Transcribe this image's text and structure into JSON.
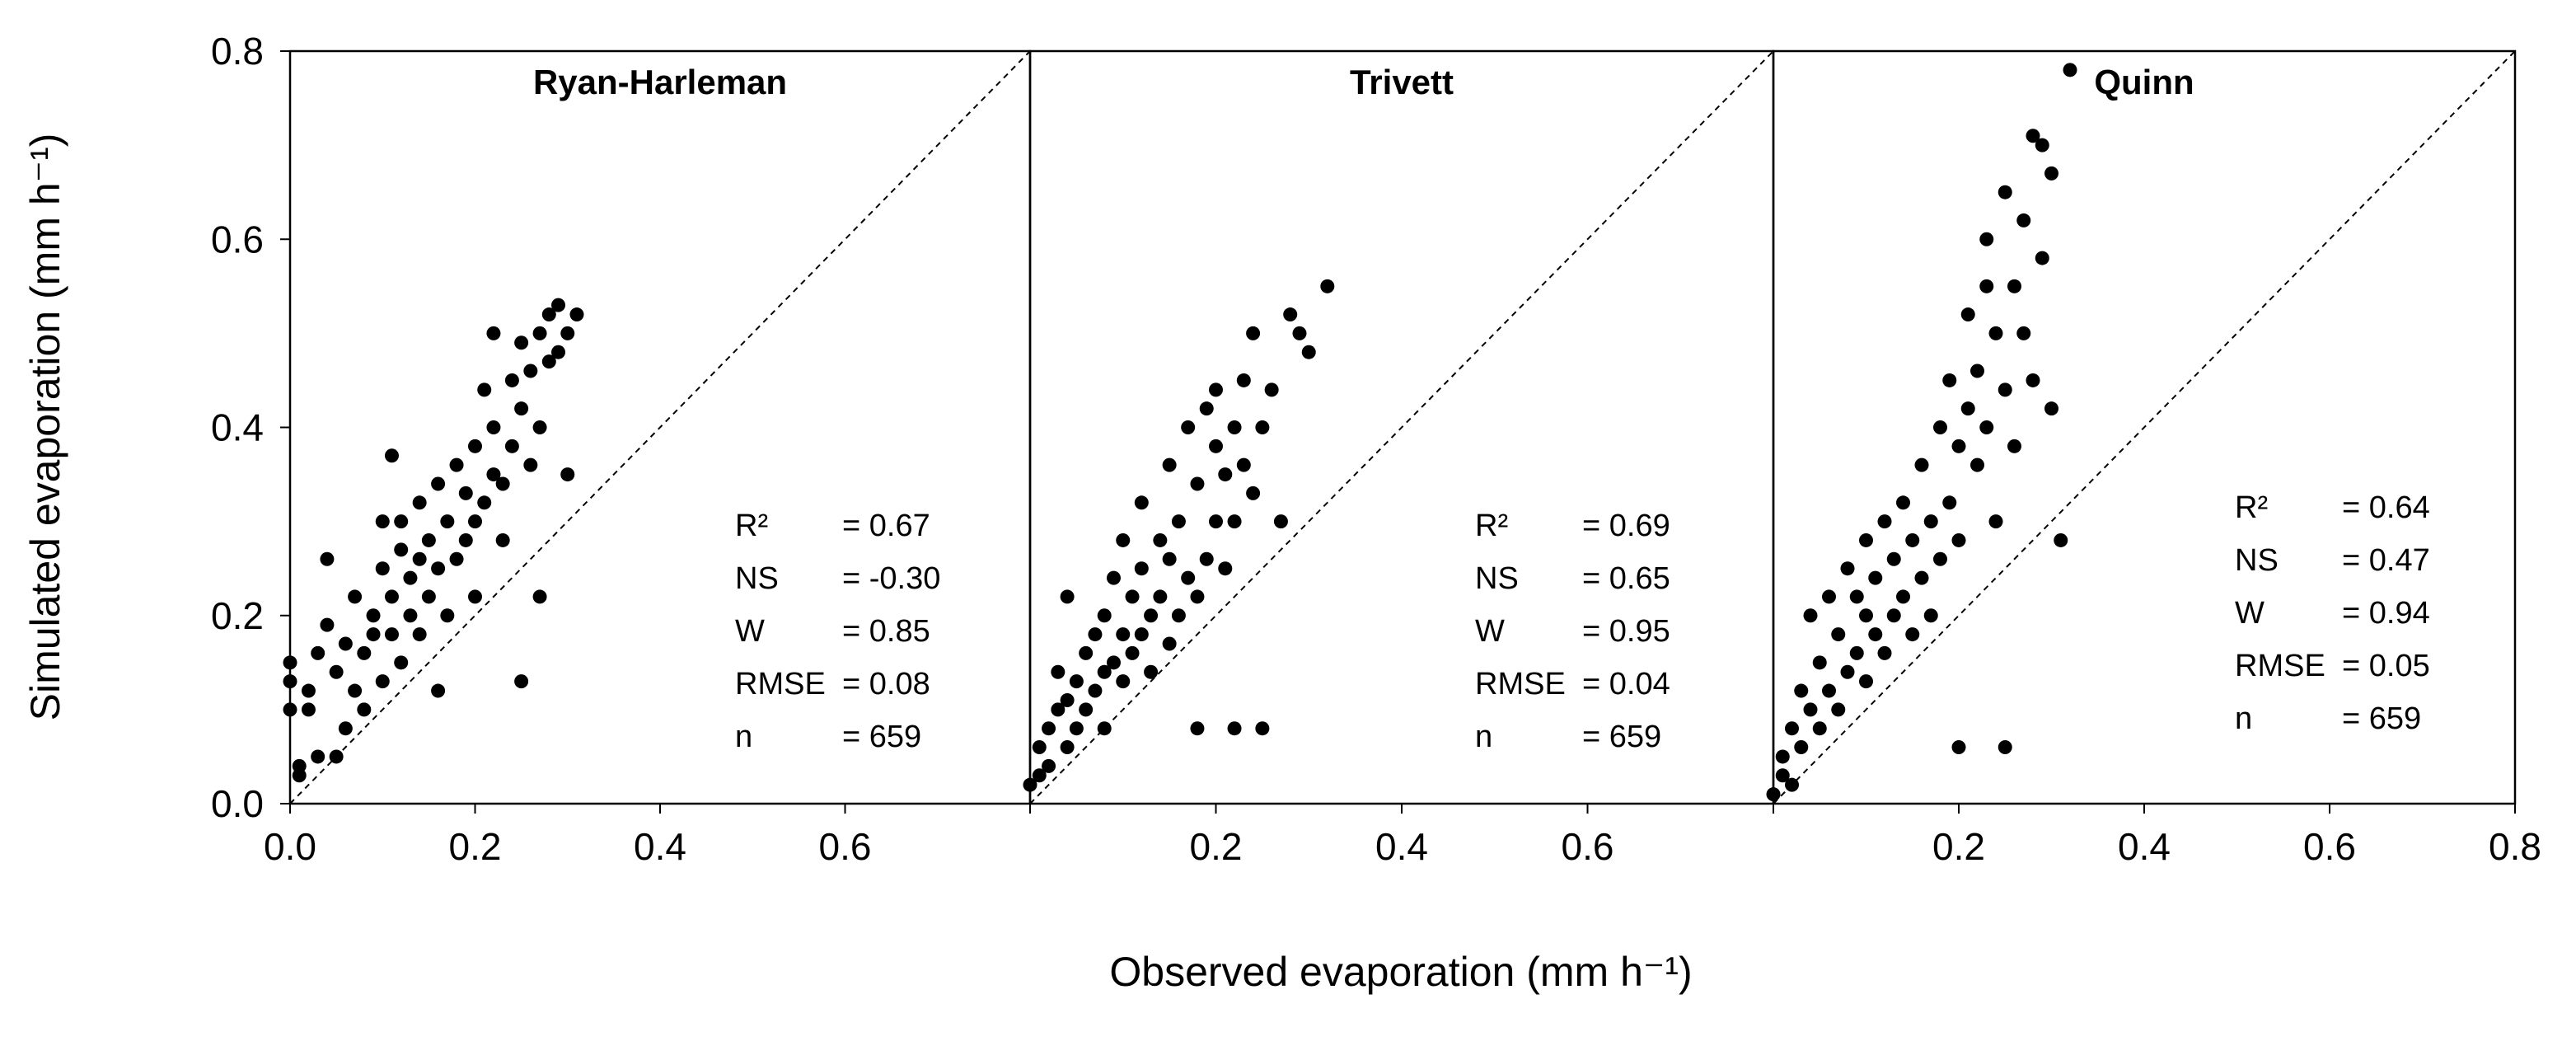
{
  "chart_data": {
    "type": "scatter",
    "xlabel": "Observed evaporation (mm h⁻¹)",
    "ylabel": "Simulated evaporation (mm h⁻¹)",
    "y_ticks": [
      "0.0",
      "0.2",
      "0.4",
      "0.6",
      "0.8"
    ],
    "ylim": [
      0,
      0.8
    ],
    "reference_line": "1:1 dashed",
    "panels": [
      {
        "title": "Ryan-Harleman",
        "xlim": [
          0,
          0.8
        ],
        "x_ticks": [
          "0.0",
          "0.2",
          "0.4",
          "0.6"
        ],
        "stats": [
          {
            "label": "R²",
            "value": "= 0.67"
          },
          {
            "label": "NS",
            "value": "= -0.30"
          },
          {
            "label": "W",
            "value": "= 0.85"
          },
          {
            "label": "RMSE",
            "value": "= 0.08"
          },
          {
            "label": "n",
            "value": "= 659"
          }
        ],
        "points": [
          [
            0.0,
            0.1
          ],
          [
            0.0,
            0.13
          ],
          [
            0.01,
            0.04
          ],
          [
            0.01,
            0.03
          ],
          [
            0.0,
            0.15
          ],
          [
            0.02,
            0.12
          ],
          [
            0.03,
            0.16
          ],
          [
            0.02,
            0.1
          ],
          [
            0.04,
            0.19
          ],
          [
            0.04,
            0.26
          ],
          [
            0.03,
            0.05
          ],
          [
            0.05,
            0.05
          ],
          [
            0.05,
            0.14
          ],
          [
            0.06,
            0.17
          ],
          [
            0.06,
            0.08
          ],
          [
            0.07,
            0.12
          ],
          [
            0.07,
            0.22
          ],
          [
            0.08,
            0.16
          ],
          [
            0.08,
            0.1
          ],
          [
            0.09,
            0.18
          ],
          [
            0.09,
            0.2
          ],
          [
            0.1,
            0.13
          ],
          [
            0.1,
            0.25
          ],
          [
            0.1,
            0.3
          ],
          [
            0.11,
            0.22
          ],
          [
            0.11,
            0.18
          ],
          [
            0.11,
            0.37
          ],
          [
            0.12,
            0.15
          ],
          [
            0.12,
            0.27
          ],
          [
            0.12,
            0.3
          ],
          [
            0.13,
            0.2
          ],
          [
            0.13,
            0.24
          ],
          [
            0.14,
            0.18
          ],
          [
            0.14,
            0.32
          ],
          [
            0.14,
            0.26
          ],
          [
            0.15,
            0.22
          ],
          [
            0.15,
            0.28
          ],
          [
            0.16,
            0.12
          ],
          [
            0.16,
            0.25
          ],
          [
            0.16,
            0.34
          ],
          [
            0.17,
            0.2
          ],
          [
            0.17,
            0.3
          ],
          [
            0.18,
            0.26
          ],
          [
            0.18,
            0.36
          ],
          [
            0.19,
            0.28
          ],
          [
            0.19,
            0.33
          ],
          [
            0.2,
            0.3
          ],
          [
            0.2,
            0.38
          ],
          [
            0.2,
            0.22
          ],
          [
            0.21,
            0.32
          ],
          [
            0.21,
            0.44
          ],
          [
            0.22,
            0.35
          ],
          [
            0.22,
            0.4
          ],
          [
            0.22,
            0.5
          ],
          [
            0.23,
            0.34
          ],
          [
            0.23,
            0.28
          ],
          [
            0.24,
            0.38
          ],
          [
            0.24,
            0.45
          ],
          [
            0.25,
            0.13
          ],
          [
            0.25,
            0.42
          ],
          [
            0.25,
            0.49
          ],
          [
            0.26,
            0.36
          ],
          [
            0.26,
            0.46
          ],
          [
            0.27,
            0.4
          ],
          [
            0.27,
            0.5
          ],
          [
            0.28,
            0.47
          ],
          [
            0.28,
            0.52
          ],
          [
            0.29,
            0.48
          ],
          [
            0.29,
            0.53
          ],
          [
            0.3,
            0.5
          ],
          [
            0.31,
            0.52
          ],
          [
            0.27,
            0.22
          ],
          [
            0.3,
            0.35
          ]
        ]
      },
      {
        "title": "Trivett",
        "xlim": [
          0,
          0.8
        ],
        "x_ticks": [
          "0.2",
          "0.4",
          "0.6"
        ],
        "stats": [
          {
            "label": "R²",
            "value": "= 0.69"
          },
          {
            "label": "NS",
            "value": "= 0.65"
          },
          {
            "label": "W",
            "value": "= 0.95"
          },
          {
            "label": "RMSE",
            "value": "= 0.04"
          },
          {
            "label": "n",
            "value": "= 659"
          }
        ],
        "points": [
          [
            0.0,
            0.02
          ],
          [
            0.01,
            0.03
          ],
          [
            0.01,
            0.06
          ],
          [
            0.02,
            0.08
          ],
          [
            0.02,
            0.04
          ],
          [
            0.03,
            0.1
          ],
          [
            0.03,
            0.14
          ],
          [
            0.04,
            0.06
          ],
          [
            0.04,
            0.11
          ],
          [
            0.04,
            0.22
          ],
          [
            0.05,
            0.08
          ],
          [
            0.05,
            0.13
          ],
          [
            0.06,
            0.1
          ],
          [
            0.06,
            0.16
          ],
          [
            0.07,
            0.12
          ],
          [
            0.07,
            0.18
          ],
          [
            0.08,
            0.14
          ],
          [
            0.08,
            0.2
          ],
          [
            0.08,
            0.08
          ],
          [
            0.09,
            0.15
          ],
          [
            0.09,
            0.24
          ],
          [
            0.1,
            0.13
          ],
          [
            0.1,
            0.18
          ],
          [
            0.1,
            0.28
          ],
          [
            0.11,
            0.16
          ],
          [
            0.11,
            0.22
          ],
          [
            0.12,
            0.18
          ],
          [
            0.12,
            0.25
          ],
          [
            0.12,
            0.32
          ],
          [
            0.13,
            0.14
          ],
          [
            0.13,
            0.2
          ],
          [
            0.14,
            0.22
          ],
          [
            0.14,
            0.28
          ],
          [
            0.15,
            0.17
          ],
          [
            0.15,
            0.26
          ],
          [
            0.15,
            0.36
          ],
          [
            0.16,
            0.2
          ],
          [
            0.16,
            0.3
          ],
          [
            0.17,
            0.24
          ],
          [
            0.17,
            0.4
          ],
          [
            0.18,
            0.22
          ],
          [
            0.18,
            0.34
          ],
          [
            0.19,
            0.26
          ],
          [
            0.19,
            0.42
          ],
          [
            0.2,
            0.3
          ],
          [
            0.2,
            0.38
          ],
          [
            0.2,
            0.44
          ],
          [
            0.21,
            0.25
          ],
          [
            0.21,
            0.35
          ],
          [
            0.22,
            0.4
          ],
          [
            0.22,
            0.3
          ],
          [
            0.23,
            0.45
          ],
          [
            0.23,
            0.36
          ],
          [
            0.24,
            0.33
          ],
          [
            0.24,
            0.5
          ],
          [
            0.25,
            0.4
          ],
          [
            0.25,
            0.08
          ],
          [
            0.26,
            0.44
          ],
          [
            0.27,
            0.3
          ],
          [
            0.28,
            0.52
          ],
          [
            0.29,
            0.5
          ],
          [
            0.3,
            0.48
          ],
          [
            0.32,
            0.55
          ],
          [
            0.18,
            0.08
          ],
          [
            0.22,
            0.08
          ]
        ]
      },
      {
        "title": "Quinn",
        "xlim": [
          0,
          0.8
        ],
        "x_ticks": [
          "0.2",
          "0.4",
          "0.6",
          "0.8"
        ],
        "stats": [
          {
            "label": "R²",
            "value": "= 0.64"
          },
          {
            "label": "NS",
            "value": "= 0.47"
          },
          {
            "label": "W",
            "value": "= 0.94"
          },
          {
            "label": "RMSE",
            "value": "= 0.05"
          },
          {
            "label": "n",
            "value": "= 659"
          }
        ],
        "points": [
          [
            0.0,
            0.01
          ],
          [
            0.01,
            0.03
          ],
          [
            0.01,
            0.05
          ],
          [
            0.02,
            0.02
          ],
          [
            0.02,
            0.08
          ],
          [
            0.03,
            0.06
          ],
          [
            0.03,
            0.12
          ],
          [
            0.04,
            0.1
          ],
          [
            0.04,
            0.2
          ],
          [
            0.05,
            0.08
          ],
          [
            0.05,
            0.15
          ],
          [
            0.06,
            0.12
          ],
          [
            0.06,
            0.22
          ],
          [
            0.07,
            0.1
          ],
          [
            0.07,
            0.18
          ],
          [
            0.08,
            0.14
          ],
          [
            0.08,
            0.25
          ],
          [
            0.09,
            0.16
          ],
          [
            0.09,
            0.22
          ],
          [
            0.1,
            0.13
          ],
          [
            0.1,
            0.2
          ],
          [
            0.1,
            0.28
          ],
          [
            0.11,
            0.18
          ],
          [
            0.11,
            0.24
          ],
          [
            0.12,
            0.16
          ],
          [
            0.12,
            0.3
          ],
          [
            0.13,
            0.2
          ],
          [
            0.13,
            0.26
          ],
          [
            0.14,
            0.22
          ],
          [
            0.14,
            0.32
          ],
          [
            0.15,
            0.18
          ],
          [
            0.15,
            0.28
          ],
          [
            0.16,
            0.24
          ],
          [
            0.16,
            0.36
          ],
          [
            0.17,
            0.2
          ],
          [
            0.17,
            0.3
          ],
          [
            0.18,
            0.26
          ],
          [
            0.18,
            0.4
          ],
          [
            0.19,
            0.32
          ],
          [
            0.19,
            0.45
          ],
          [
            0.2,
            0.28
          ],
          [
            0.2,
            0.38
          ],
          [
            0.2,
            0.06
          ],
          [
            0.21,
            0.42
          ],
          [
            0.21,
            0.52
          ],
          [
            0.22,
            0.36
          ],
          [
            0.22,
            0.46
          ],
          [
            0.23,
            0.4
          ],
          [
            0.23,
            0.55
          ],
          [
            0.23,
            0.6
          ],
          [
            0.24,
            0.5
          ],
          [
            0.24,
            0.3
          ],
          [
            0.25,
            0.44
          ],
          [
            0.25,
            0.65
          ],
          [
            0.26,
            0.55
          ],
          [
            0.26,
            0.38
          ],
          [
            0.27,
            0.5
          ],
          [
            0.27,
            0.62
          ],
          [
            0.28,
            0.71
          ],
          [
            0.28,
            0.45
          ],
          [
            0.29,
            0.58
          ],
          [
            0.29,
            0.7
          ],
          [
            0.3,
            0.42
          ],
          [
            0.3,
            0.67
          ],
          [
            0.31,
            0.28
          ],
          [
            0.32,
            0.78
          ],
          [
            0.25,
            0.06
          ]
        ]
      }
    ]
  }
}
